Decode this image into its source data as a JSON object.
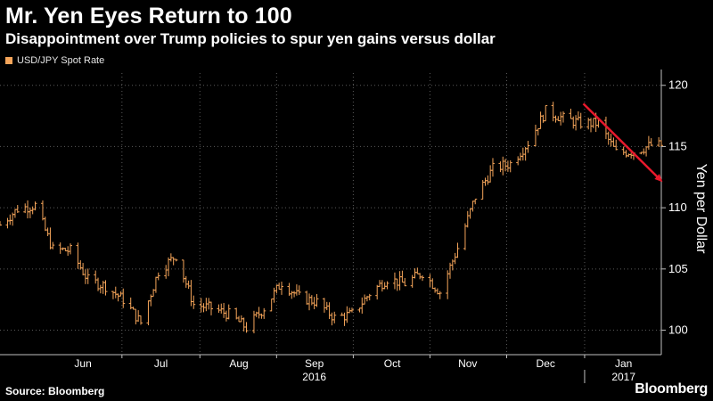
{
  "header": {
    "title": "Mr. Yen Eyes Return to 100",
    "subtitle": "Disappointment over Trump policies to spur yen gains versus dollar"
  },
  "footer": {
    "source": "Source: Bloomberg",
    "brand": "Bloomberg"
  },
  "colors": {
    "series": "#f5a55a",
    "arrow": "#e8192c",
    "grid": "#5a5a5a"
  },
  "chart_data": {
    "type": "line",
    "style": "ohlc-bars",
    "title": "Mr. Yen Eyes Return to 100",
    "subtitle": "Disappointment over Trump policies to spur yen gains versus dollar",
    "xlabel": "",
    "ylabel": "Yen per Dollar",
    "ylim": [
      98,
      121
    ],
    "yticks": [
      100,
      105,
      110,
      115,
      120
    ],
    "xlim": [
      "2016-05-13",
      "2017-01-31"
    ],
    "xticks": [
      {
        "label": "Jun",
        "date": "2016-06-15"
      },
      {
        "label": "Jul",
        "date": "2016-07-16"
      },
      {
        "label": "Aug",
        "date": "2016-08-16"
      },
      {
        "label": "Sep",
        "date": "2016-09-15"
      },
      {
        "label": "Oct",
        "date": "2016-10-16"
      },
      {
        "label": "Nov",
        "date": "2016-11-15"
      },
      {
        "label": "Dec",
        "date": "2016-12-16"
      },
      {
        "label": "Jan",
        "date": "2017-01-16"
      }
    ],
    "year_labels": [
      {
        "label": "2016",
        "date": "2016-09-15"
      },
      {
        "label": "2017",
        "date": "2017-01-16"
      }
    ],
    "grid": true,
    "legend": "top-left",
    "series": [
      {
        "name": "USD/JPY Spot Rate",
        "points": [
          [
            "2016-05-13",
            108.6
          ],
          [
            "2016-05-20",
            109.9
          ],
          [
            "2016-05-27",
            110.2
          ],
          [
            "2016-06-03",
            106.6
          ],
          [
            "2016-06-10",
            106.5
          ],
          [
            "2016-06-17",
            104.1
          ],
          [
            "2016-06-24",
            103.6
          ],
          [
            "2016-07-01",
            102.5
          ],
          [
            "2016-07-08",
            100.6
          ],
          [
            "2016-07-15",
            104.8
          ],
          [
            "2016-07-22",
            106.1
          ],
          [
            "2016-07-29",
            102.1
          ],
          [
            "2016-08-05",
            101.8
          ],
          [
            "2016-08-12",
            101.3
          ],
          [
            "2016-08-19",
            100.2
          ],
          [
            "2016-08-26",
            101.8
          ],
          [
            "2016-09-02",
            103.9
          ],
          [
            "2016-09-09",
            102.7
          ],
          [
            "2016-09-16",
            102.3
          ],
          [
            "2016-09-23",
            101.0
          ],
          [
            "2016-09-30",
            101.3
          ],
          [
            "2016-10-07",
            103.0
          ],
          [
            "2016-10-14",
            104.2
          ],
          [
            "2016-10-21",
            103.8
          ],
          [
            "2016-10-28",
            104.7
          ],
          [
            "2016-11-04",
            103.1
          ],
          [
            "2016-11-11",
            106.7
          ],
          [
            "2016-11-18",
            110.9
          ],
          [
            "2016-11-25",
            113.2
          ],
          [
            "2016-12-02",
            113.6
          ],
          [
            "2016-12-09",
            115.3
          ],
          [
            "2016-12-16",
            117.9
          ],
          [
            "2016-12-23",
            117.3
          ],
          [
            "2016-12-30",
            116.9
          ],
          [
            "2017-01-06",
            116.9
          ],
          [
            "2017-01-13",
            114.5
          ],
          [
            "2017-01-20",
            114.6
          ],
          [
            "2017-01-27",
            115.1
          ]
        ]
      }
    ],
    "annotations": [
      {
        "type": "arrow",
        "from": [
          "2016-12-31",
          118.5
        ],
        "to": [
          "2017-01-31",
          112.2
        ]
      }
    ]
  }
}
